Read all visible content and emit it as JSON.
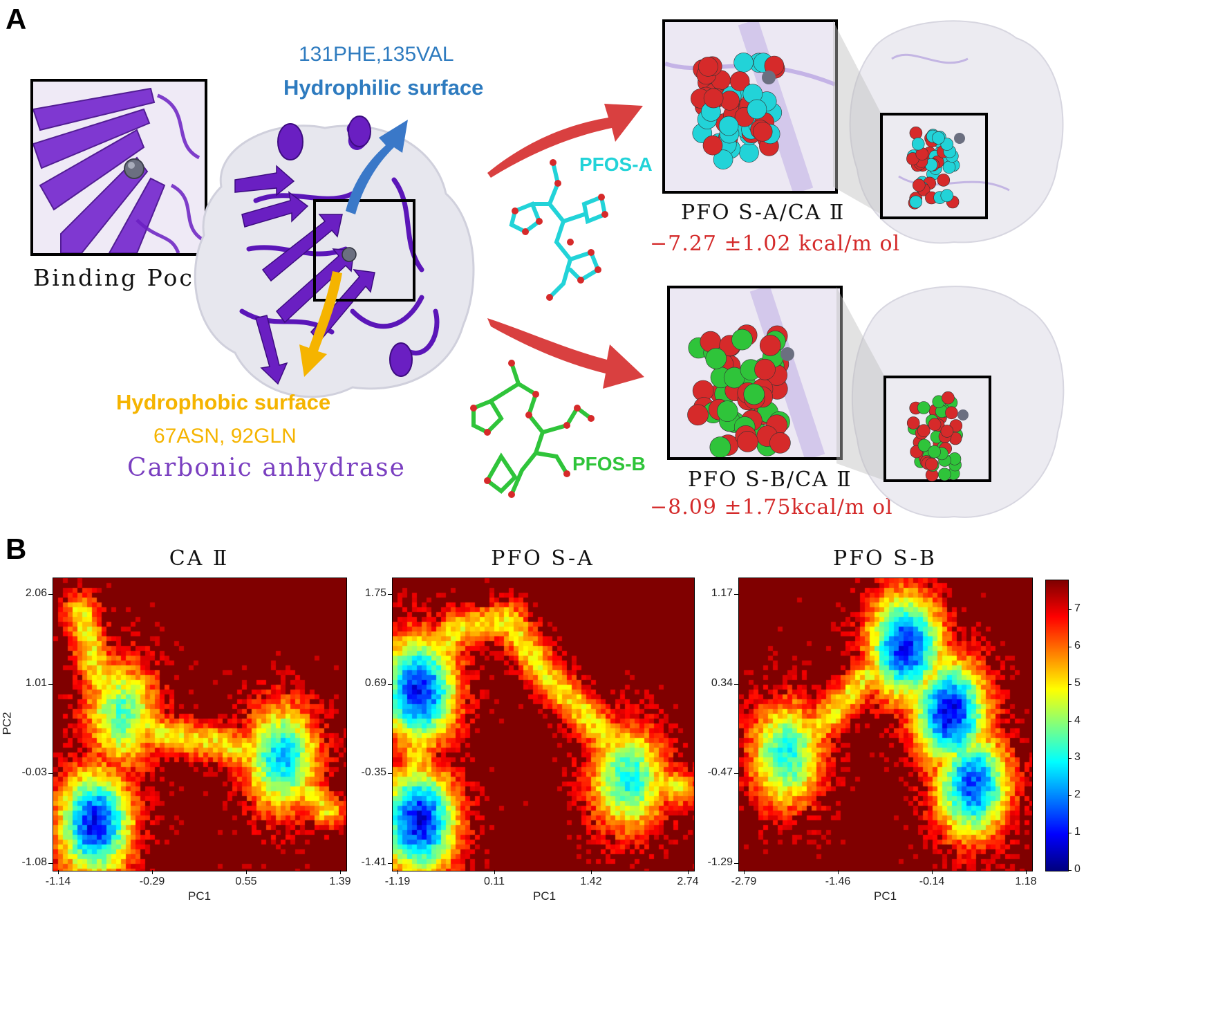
{
  "panel_a": {
    "letter": "A",
    "pocket_label": "Binding Pocket",
    "hydrophilic_residues": "131PHE,135VAL",
    "hydrophilic_label": "Hydrophilic surface",
    "hydrophobic_label": "Hydrophobic surface",
    "hydrophobic_residues": "67ASN, 92GLN",
    "protein_name": "Carbonic anhydrase",
    "ligand_a": "PFOS-A",
    "ligand_b": "PFOS-B",
    "complex_a": "PFO S-A/CA Ⅱ",
    "energy_a": "−7.27 ±1.02 kcal/m ol",
    "complex_b": "PFO S-B/CA Ⅱ",
    "energy_b": "−8.09 ±1.75kcal/m ol",
    "colors": {
      "protein": "#6a1fc2",
      "hydrophilic_arrow": "#3a78c8",
      "hydrophobic_arrow": "#f5b400",
      "red_arrow": "#d94040",
      "ligand_a_carbon": "#22d3d8",
      "ligand_b_carbon": "#2fc43a",
      "oxygen": "#d62a2a"
    }
  },
  "panel_b": {
    "letter": "B",
    "colorbar_ticks": [
      "0",
      "1",
      "2",
      "3",
      "4",
      "5",
      "6",
      "7"
    ],
    "colormap": "jet"
  },
  "chart_data": [
    {
      "type": "heatmap",
      "title": "CA Ⅱ",
      "xlabel": "PC1",
      "ylabel": "PC2",
      "xticks": [
        "-1.14",
        "-0.29",
        "0.55",
        "1.39"
      ],
      "yticks": [
        "2.06",
        "1.01",
        "-0.03",
        "-1.08"
      ],
      "xlim": [
        -1.14,
        1.39
      ],
      "ylim": [
        -1.08,
        2.06
      ],
      "zlim": [
        0,
        7.8
      ],
      "low_energy_basins": [
        {
          "x": -0.78,
          "y": -0.55,
          "min_value": 1.0
        },
        {
          "x": 0.82,
          "y": 0.15,
          "min_value": 2.5
        },
        {
          "x": -0.55,
          "y": 0.62,
          "min_value": 3.5
        }
      ]
    },
    {
      "type": "heatmap",
      "title": "PFO S-A",
      "xlabel": "PC1",
      "ylabel": "",
      "xticks": [
        "-1.19",
        "0.11",
        "1.42",
        "2.74"
      ],
      "yticks": [
        "1.75",
        "0.69",
        "-0.35",
        "-1.41"
      ],
      "xlim": [
        -1.19,
        2.74
      ],
      "ylim": [
        -1.41,
        1.75
      ],
      "zlim": [
        0,
        7.8
      ],
      "low_energy_basins": [
        {
          "x": -0.85,
          "y": -0.85,
          "min_value": 0.8
        },
        {
          "x": -0.85,
          "y": 0.55,
          "min_value": 1.0
        },
        {
          "x": 1.85,
          "y": -0.4,
          "min_value": 3.0
        }
      ]
    },
    {
      "type": "heatmap",
      "title": "PFO S-B",
      "xlabel": "PC1",
      "ylabel": "",
      "xticks": [
        "-2.79",
        "-1.46",
        "-0.14",
        "1.18"
      ],
      "yticks": [
        "1.17",
        "0.34",
        "-0.47",
        "-1.29"
      ],
      "xlim": [
        -2.79,
        1.18
      ],
      "ylim": [
        -1.29,
        1.17
      ],
      "zlim": [
        0,
        7.8
      ],
      "low_energy_basins": [
        {
          "x": 0.05,
          "y": 0.05,
          "min_value": 0.8
        },
        {
          "x": -0.55,
          "y": 0.6,
          "min_value": 1.0
        },
        {
          "x": 0.35,
          "y": -0.55,
          "min_value": 1.5
        },
        {
          "x": -2.15,
          "y": -0.3,
          "min_value": 3.0
        }
      ]
    }
  ]
}
